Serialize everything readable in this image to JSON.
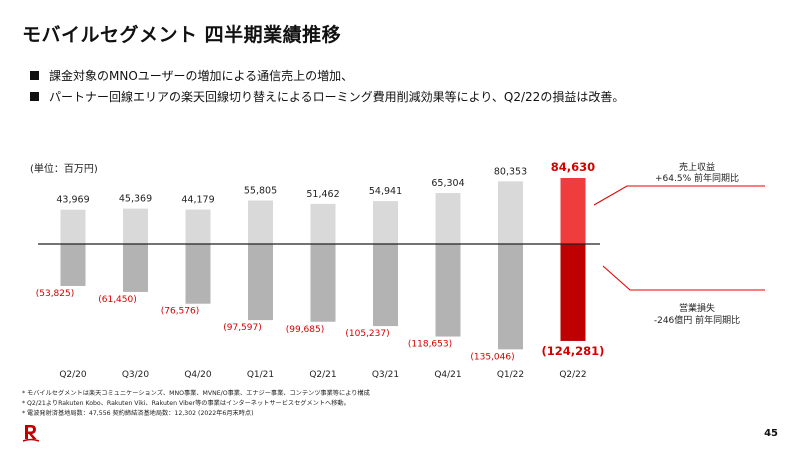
{
  "header": {
    "title": "モバイルセグメント 四半期業績推移",
    "bullets": [
      "課金対象のMNOユーザーの増加による通信売上の増加、",
      "パートナー回線エリアの楽天回線切り替えによるローミング費用削減効果等により、Q2/22の損益は改善。"
    ]
  },
  "chart_data": {
    "type": "bar",
    "unit_label": "(単位：百万円)",
    "categories": [
      "Q2/20",
      "Q3/20",
      "Q4/20",
      "Q1/21",
      "Q2/21",
      "Q3/21",
      "Q4/21",
      "Q1/22",
      "Q2/22"
    ],
    "series": [
      {
        "name": "売上収益",
        "values": [
          43969,
          45369,
          44179,
          55805,
          51462,
          54941,
          65304,
          80353,
          84630
        ],
        "labels": [
          "43,969",
          "45,369",
          "44,179",
          "55,805",
          "51,462",
          "54,941",
          "65,304",
          "80,353",
          "84,630"
        ]
      },
      {
        "name": "営業損失",
        "values": [
          -53825,
          -61450,
          -76576,
          -97597,
          -99685,
          -105237,
          -118653,
          -135046,
          -124281
        ],
        "labels": [
          "(53,825)",
          "(61,450)",
          "(76,576)",
          "(97,597)",
          "(99,685)",
          "(105,237)",
          "(118,653)",
          "(135,046)",
          "(124,281)"
        ]
      }
    ],
    "annotations": {
      "revenue": [
        "売上収益",
        "+64.5% 前年同期比"
      ],
      "loss": [
        "営業損失",
        "-246億円 前年同期比"
      ]
    },
    "colors": {
      "revenue": "#d9d9d9",
      "loss": "#b3b3b3",
      "revenue_highlight": "#ef3c3c",
      "loss_highlight": "#bf0000",
      "axis": "#222222",
      "red_text": "#d40000",
      "accent_line": "#e60000"
    }
  },
  "footnotes": [
    "* モバイルセグメントは楽天コミュニケーションズ、MNO事業、MVNE/O事業、エナジー事業、コンテンツ事業等により構成",
    "* Q2/21よりRakuten Kobo、Rakuten Viki、Rakuten Viber等の事業はインターネットサービスセグメントへ移動。",
    "* 電波発射済基地局数：47,556 契約締結済基地局数：12,302 (2022年6月末時点)"
  ],
  "page_number": "45"
}
